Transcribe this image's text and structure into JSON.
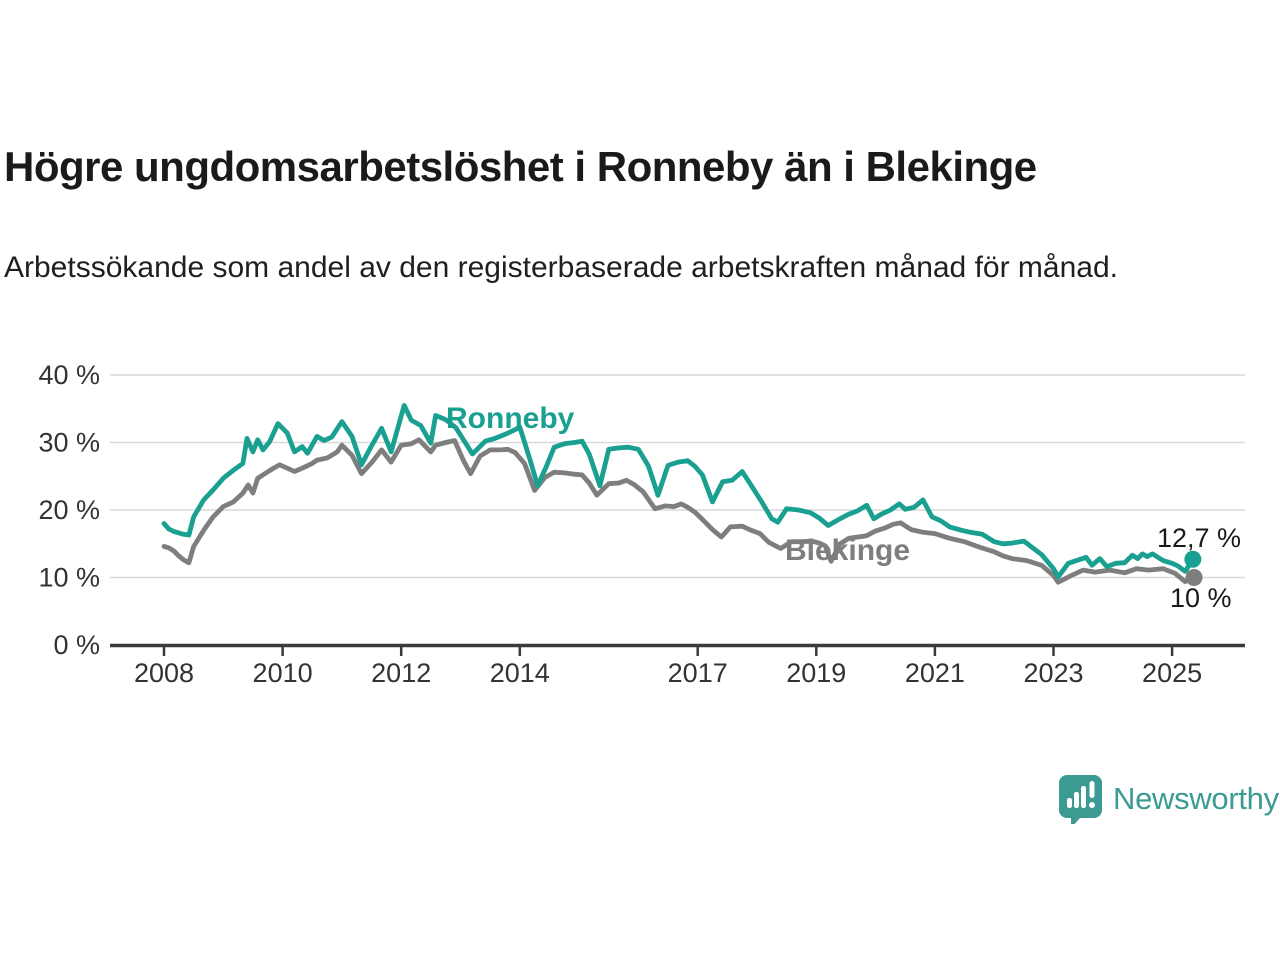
{
  "header": {
    "title": "Högre ungdomsarbetslöshet i Ronneby än i Blekinge",
    "subtitle": "Arbetssökande som andel av den registerbaserade arbetskraften månad för månad."
  },
  "colors": {
    "ronneby": "#1aa091",
    "blekinge": "#7e7e7e",
    "axis": "#3a3a3c",
    "grid": "#d9d9d9",
    "tick_text": "#333333",
    "annotation_text": "#1a1a1a",
    "logo": "#3b9a92"
  },
  "branding": {
    "logo_text": "Newsworthy",
    "logo_icon": "speech-bubble-bar-chart"
  },
  "chart_data": {
    "type": "line",
    "unit": "%",
    "grid": "horizontal",
    "y_axis": {
      "ticks": [
        0,
        10,
        20,
        30,
        40
      ],
      "tick_suffix": " %",
      "range": [
        0,
        42
      ]
    },
    "x_axis": {
      "ticks": [
        2008,
        2010,
        2012,
        2014,
        2017,
        2019,
        2021,
        2023,
        2025
      ],
      "range": [
        2007.1,
        2026.3
      ]
    },
    "series": [
      {
        "name": "Ronneby",
        "end_label": "12,7 %",
        "points": [
          [
            2008.0,
            18.0
          ],
          [
            2008.08,
            17.2
          ],
          [
            2008.17,
            16.8
          ],
          [
            2008.25,
            16.6
          ],
          [
            2008.33,
            16.4
          ],
          [
            2008.42,
            16.3
          ],
          [
            2008.5,
            19.0
          ],
          [
            2008.67,
            21.5
          ],
          [
            2008.83,
            23.0
          ],
          [
            2009.0,
            24.7
          ],
          [
            2009.17,
            25.9
          ],
          [
            2009.33,
            26.9
          ],
          [
            2009.4,
            30.6
          ],
          [
            2009.5,
            28.6
          ],
          [
            2009.58,
            30.4
          ],
          [
            2009.67,
            28.9
          ],
          [
            2009.78,
            30.1
          ],
          [
            2009.92,
            32.8
          ],
          [
            2010.08,
            31.4
          ],
          [
            2010.2,
            28.6
          ],
          [
            2010.33,
            29.4
          ],
          [
            2010.42,
            28.4
          ],
          [
            2010.58,
            30.9
          ],
          [
            2010.7,
            30.3
          ],
          [
            2010.83,
            30.8
          ],
          [
            2011.0,
            33.1
          ],
          [
            2011.17,
            30.9
          ],
          [
            2011.33,
            26.7
          ],
          [
            2011.5,
            29.5
          ],
          [
            2011.67,
            32.1
          ],
          [
            2011.83,
            28.6
          ],
          [
            2012.05,
            35.5
          ],
          [
            2012.17,
            33.3
          ],
          [
            2012.33,
            32.5
          ],
          [
            2012.5,
            29.9
          ],
          [
            2012.58,
            34.0
          ],
          [
            2012.75,
            33.4
          ],
          [
            2012.92,
            32.2
          ],
          [
            2013.08,
            30.0
          ],
          [
            2013.2,
            28.3
          ],
          [
            2013.42,
            30.2
          ],
          [
            2013.58,
            30.6
          ],
          [
            2013.75,
            31.2
          ],
          [
            2013.92,
            31.9
          ],
          [
            2014.0,
            32.3
          ],
          [
            2014.17,
            27.5
          ],
          [
            2014.3,
            23.6
          ],
          [
            2014.45,
            26.5
          ],
          [
            2014.58,
            29.3
          ],
          [
            2014.75,
            29.8
          ],
          [
            2014.92,
            30.0
          ],
          [
            2015.05,
            30.2
          ],
          [
            2015.17,
            28.3
          ],
          [
            2015.35,
            23.6
          ],
          [
            2015.5,
            29.0
          ],
          [
            2015.67,
            29.2
          ],
          [
            2015.83,
            29.3
          ],
          [
            2016.0,
            29.0
          ],
          [
            2016.17,
            26.5
          ],
          [
            2016.33,
            22.2
          ],
          [
            2016.5,
            26.6
          ],
          [
            2016.67,
            27.1
          ],
          [
            2016.83,
            27.3
          ],
          [
            2016.95,
            26.5
          ],
          [
            2017.08,
            25.2
          ],
          [
            2017.25,
            21.2
          ],
          [
            2017.42,
            24.2
          ],
          [
            2017.58,
            24.4
          ],
          [
            2017.75,
            25.7
          ],
          [
            2017.92,
            23.4
          ],
          [
            2018.08,
            21.2
          ],
          [
            2018.25,
            18.7
          ],
          [
            2018.35,
            18.2
          ],
          [
            2018.5,
            20.2
          ],
          [
            2018.7,
            20.0
          ],
          [
            2018.9,
            19.6
          ],
          [
            2019.05,
            18.8
          ],
          [
            2019.2,
            17.7
          ],
          [
            2019.38,
            18.6
          ],
          [
            2019.55,
            19.4
          ],
          [
            2019.7,
            19.9
          ],
          [
            2019.85,
            20.7
          ],
          [
            2019.97,
            18.7
          ],
          [
            2020.1,
            19.4
          ],
          [
            2020.25,
            20.0
          ],
          [
            2020.4,
            20.9
          ],
          [
            2020.5,
            20.1
          ],
          [
            2020.65,
            20.4
          ],
          [
            2020.8,
            21.5
          ],
          [
            2020.95,
            19.0
          ],
          [
            2021.1,
            18.4
          ],
          [
            2021.25,
            17.5
          ],
          [
            2021.45,
            17.0
          ],
          [
            2021.6,
            16.7
          ],
          [
            2021.8,
            16.4
          ],
          [
            2022.0,
            15.3
          ],
          [
            2022.15,
            15.0
          ],
          [
            2022.3,
            15.1
          ],
          [
            2022.5,
            15.4
          ],
          [
            2022.65,
            14.4
          ],
          [
            2022.8,
            13.4
          ],
          [
            2023.0,
            11.3
          ],
          [
            2023.08,
            10.1
          ],
          [
            2023.25,
            12.1
          ],
          [
            2023.45,
            12.7
          ],
          [
            2023.55,
            13.0
          ],
          [
            2023.65,
            11.8
          ],
          [
            2023.78,
            12.8
          ],
          [
            2023.9,
            11.6
          ],
          [
            2024.05,
            12.1
          ],
          [
            2024.2,
            12.2
          ],
          [
            2024.33,
            13.3
          ],
          [
            2024.42,
            12.8
          ],
          [
            2024.5,
            13.5
          ],
          [
            2024.58,
            13.1
          ],
          [
            2024.67,
            13.5
          ],
          [
            2024.85,
            12.5
          ],
          [
            2025.0,
            12.1
          ],
          [
            2025.1,
            11.7
          ],
          [
            2025.22,
            10.9
          ],
          [
            2025.35,
            12.7
          ]
        ]
      },
      {
        "name": "Blekinge",
        "end_label": "10 %",
        "points": [
          [
            2008.0,
            14.6
          ],
          [
            2008.08,
            14.4
          ],
          [
            2008.17,
            13.9
          ],
          [
            2008.25,
            13.2
          ],
          [
            2008.33,
            12.6
          ],
          [
            2008.42,
            12.2
          ],
          [
            2008.5,
            14.6
          ],
          [
            2008.67,
            17.0
          ],
          [
            2008.83,
            19.0
          ],
          [
            2009.0,
            20.5
          ],
          [
            2009.17,
            21.2
          ],
          [
            2009.33,
            22.5
          ],
          [
            2009.42,
            23.7
          ],
          [
            2009.5,
            22.5
          ],
          [
            2009.58,
            24.7
          ],
          [
            2009.67,
            25.2
          ],
          [
            2009.83,
            26.1
          ],
          [
            2009.95,
            26.7
          ],
          [
            2010.08,
            26.2
          ],
          [
            2010.2,
            25.7
          ],
          [
            2010.33,
            26.2
          ],
          [
            2010.5,
            26.9
          ],
          [
            2010.58,
            27.4
          ],
          [
            2010.75,
            27.7
          ],
          [
            2010.92,
            28.6
          ],
          [
            2011.0,
            29.6
          ],
          [
            2011.17,
            28.1
          ],
          [
            2011.33,
            25.4
          ],
          [
            2011.5,
            27.0
          ],
          [
            2011.67,
            28.9
          ],
          [
            2011.83,
            27.1
          ],
          [
            2012.0,
            29.6
          ],
          [
            2012.17,
            29.8
          ],
          [
            2012.3,
            30.4
          ],
          [
            2012.5,
            28.6
          ],
          [
            2012.58,
            29.6
          ],
          [
            2012.75,
            30.0
          ],
          [
            2012.9,
            30.3
          ],
          [
            2013.05,
            27.3
          ],
          [
            2013.17,
            25.4
          ],
          [
            2013.33,
            28.0
          ],
          [
            2013.5,
            28.9
          ],
          [
            2013.67,
            28.9
          ],
          [
            2013.8,
            29.0
          ],
          [
            2013.92,
            28.5
          ],
          [
            2014.08,
            26.9
          ],
          [
            2014.25,
            22.9
          ],
          [
            2014.42,
            24.8
          ],
          [
            2014.58,
            25.6
          ],
          [
            2014.75,
            25.5
          ],
          [
            2014.92,
            25.3
          ],
          [
            2015.05,
            25.2
          ],
          [
            2015.17,
            24.0
          ],
          [
            2015.3,
            22.2
          ],
          [
            2015.5,
            23.9
          ],
          [
            2015.67,
            24.0
          ],
          [
            2015.8,
            24.4
          ],
          [
            2015.92,
            23.8
          ],
          [
            2016.08,
            22.7
          ],
          [
            2016.28,
            20.2
          ],
          [
            2016.45,
            20.6
          ],
          [
            2016.6,
            20.5
          ],
          [
            2016.72,
            20.9
          ],
          [
            2016.83,
            20.4
          ],
          [
            2016.95,
            19.7
          ],
          [
            2017.08,
            18.6
          ],
          [
            2017.25,
            17.1
          ],
          [
            2017.4,
            16.0
          ],
          [
            2017.55,
            17.5
          ],
          [
            2017.75,
            17.6
          ],
          [
            2017.9,
            17.0
          ],
          [
            2018.05,
            16.5
          ],
          [
            2018.2,
            15.2
          ],
          [
            2018.4,
            14.3
          ],
          [
            2018.58,
            15.3
          ],
          [
            2018.75,
            15.3
          ],
          [
            2018.92,
            15.4
          ],
          [
            2019.05,
            15.1
          ],
          [
            2019.15,
            14.7
          ],
          [
            2019.25,
            12.4
          ],
          [
            2019.4,
            15.0
          ],
          [
            2019.55,
            15.8
          ],
          [
            2019.7,
            16.0
          ],
          [
            2019.85,
            16.2
          ],
          [
            2020.0,
            16.9
          ],
          [
            2020.15,
            17.3
          ],
          [
            2020.3,
            17.9
          ],
          [
            2020.42,
            18.1
          ],
          [
            2020.6,
            17.1
          ],
          [
            2020.8,
            16.7
          ],
          [
            2021.0,
            16.5
          ],
          [
            2021.25,
            15.8
          ],
          [
            2021.5,
            15.3
          ],
          [
            2021.75,
            14.5
          ],
          [
            2022.0,
            13.8
          ],
          [
            2022.15,
            13.2
          ],
          [
            2022.3,
            12.8
          ],
          [
            2022.55,
            12.5
          ],
          [
            2022.8,
            11.8
          ],
          [
            2023.0,
            10.3
          ],
          [
            2023.08,
            9.3
          ],
          [
            2023.3,
            10.3
          ],
          [
            2023.5,
            11.1
          ],
          [
            2023.7,
            10.8
          ],
          [
            2023.95,
            11.1
          ],
          [
            2024.2,
            10.7
          ],
          [
            2024.4,
            11.3
          ],
          [
            2024.6,
            11.1
          ],
          [
            2024.85,
            11.3
          ],
          [
            2025.05,
            10.6
          ],
          [
            2025.22,
            9.4
          ],
          [
            2025.37,
            10.0
          ]
        ]
      }
    ]
  }
}
